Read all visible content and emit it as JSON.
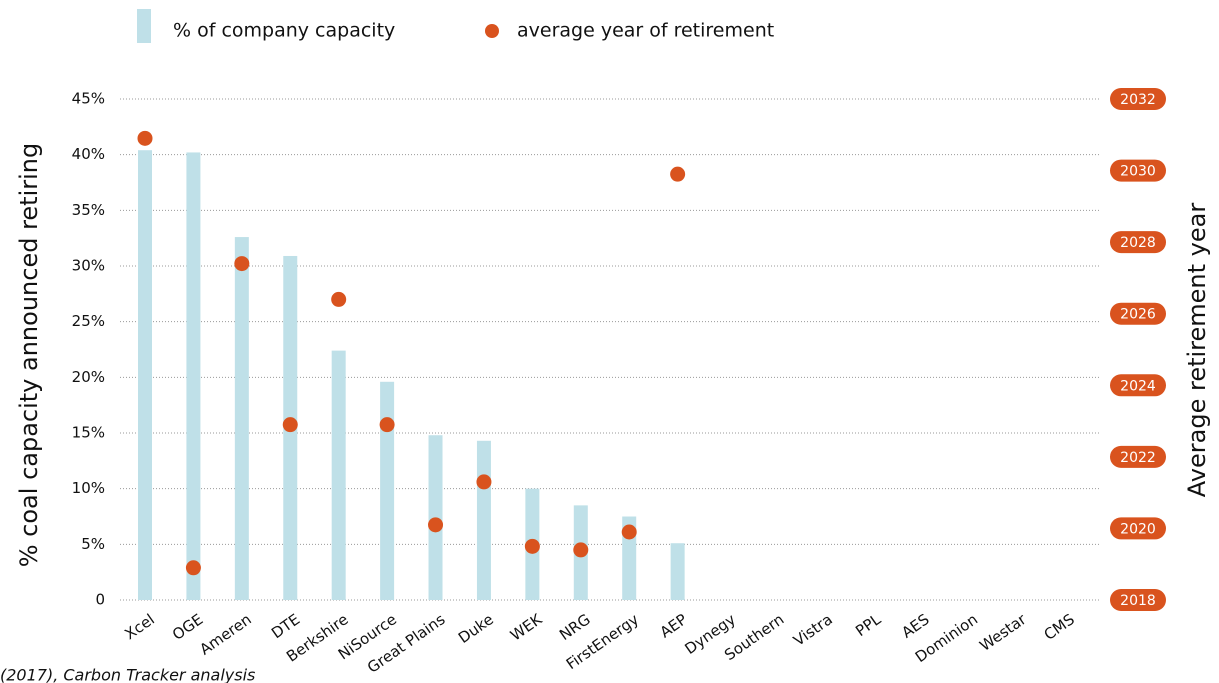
{
  "chart_data": {
    "type": "bar",
    "ylabel": "% coal capacity announced retiring",
    "y2label": "Average retirement year",
    "categories": [
      "Xcel",
      "OGE",
      "Ameren",
      "DTE",
      "Berkshire",
      "NiSource",
      "Great Plains",
      "Duke",
      "WEK",
      "NRG",
      "FirstEnergy",
      "AEP",
      "Dynegy",
      "Southern",
      "Vistra",
      "PPL",
      "AES",
      "Dominion",
      "Westar",
      "CMS"
    ],
    "series": [
      {
        "name": "% of company capacity",
        "type": "bar",
        "color": "#bfe0e8",
        "axis": "y",
        "values": [
          40.4,
          40.2,
          32.6,
          30.9,
          22.4,
          19.6,
          14.8,
          14.3,
          10.0,
          8.5,
          7.5,
          5.1,
          0,
          0,
          0,
          0,
          0,
          0,
          0,
          0
        ]
      },
      {
        "name": "average year of retirement",
        "type": "scatter",
        "color": "#d9531e",
        "axis": "y2",
        "values": [
          2030.9,
          2018.9,
          2027.4,
          2022.9,
          2026.4,
          2022.9,
          2020.1,
          2021.3,
          2019.5,
          2019.4,
          2019.9,
          2029.9,
          null,
          null,
          null,
          null,
          null,
          null,
          null,
          null
        ]
      }
    ],
    "ylim": [
      0,
      45
    ],
    "yticks": [
      0,
      {
        "value": 5,
        "label": "5%"
      },
      {
        "value": 10,
        "label": "10%"
      },
      {
        "value": 15,
        "label": "15%"
      },
      {
        "value": 20,
        "label": "20%"
      },
      {
        "value": 25,
        "label": "25%"
      },
      {
        "value": 30,
        "label": "30%"
      },
      {
        "value": 35,
        "label": "35%"
      },
      {
        "value": 40,
        "label": "40%"
      },
      {
        "value": 45,
        "label": "45%"
      }
    ],
    "y2lim": [
      2018,
      2032
    ],
    "y2ticks": [
      2018,
      2020,
      2022,
      2024,
      2026,
      2028,
      2030,
      2032
    ],
    "grid": true,
    "note": "(2017), Carbon Tracker analysis"
  }
}
